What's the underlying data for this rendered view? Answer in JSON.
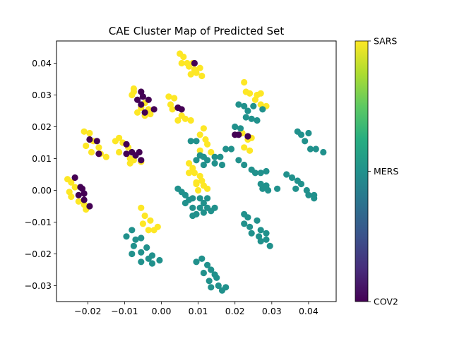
{
  "chart_data": {
    "type": "scatter",
    "title": "CAE Cluster Map of Predicted Set",
    "xlabel": "",
    "ylabel": "",
    "xlim": [
      -0.0285,
      0.0475
    ],
    "ylim": [
      -0.035,
      0.047
    ],
    "xticks": [
      -0.02,
      -0.01,
      0.0,
      0.01,
      0.02,
      0.03,
      0.04
    ],
    "xtick_labels": [
      "−0.02",
      "−0.01",
      "0.00",
      "0.01",
      "0.02",
      "0.03",
      "0.04"
    ],
    "yticks": [
      -0.03,
      -0.02,
      -0.01,
      0.0,
      0.01,
      0.02,
      0.03,
      0.04
    ],
    "ytick_labels": [
      "−0.03",
      "−0.02",
      "−0.01",
      "0.00",
      "0.01",
      "0.02",
      "0.03",
      "0.04"
    ],
    "colorbar": {
      "colormap": "viridis",
      "labels": [
        "SARS",
        "MERS",
        "COV2"
      ],
      "colors": {
        "SARS": "#fde725",
        "MERS": "#21918c",
        "COV2": "#440154"
      }
    },
    "series": [
      {
        "name": "SARS",
        "points": [
          [
            0.005,
            0.043
          ],
          [
            0.006,
            0.042
          ],
          [
            0.0055,
            0.04
          ],
          [
            0.007,
            0.04
          ],
          [
            0.0075,
            0.039
          ],
          [
            0.0085,
            0.04
          ],
          [
            0.009,
            0.038
          ],
          [
            0.008,
            0.0365
          ],
          [
            0.0095,
            0.037
          ],
          [
            0.011,
            0.036
          ],
          [
            0.0105,
            0.0385
          ],
          [
            -0.0075,
            0.032
          ],
          [
            -0.0075,
            0.031
          ],
          [
            -0.008,
            0.03
          ],
          [
            -0.0045,
            0.0275
          ],
          [
            -0.0055,
            0.026
          ],
          [
            -0.0045,
            0.0235
          ],
          [
            -0.003,
            0.024
          ],
          [
            -0.0035,
            0.0255
          ],
          [
            -0.0065,
            0.0245
          ],
          [
            0.002,
            0.0295
          ],
          [
            0.0035,
            0.029
          ],
          [
            0.0025,
            0.027
          ],
          [
            0.003,
            0.0255
          ],
          [
            0.0055,
            0.0235
          ],
          [
            0.0045,
            0.022
          ],
          [
            0.0065,
            0.0225
          ],
          [
            0.008,
            0.022
          ],
          [
            -0.021,
            0.0185
          ],
          [
            -0.0195,
            0.018
          ],
          [
            -0.0185,
            0.0155
          ],
          [
            -0.0205,
            0.014
          ],
          [
            -0.017,
            0.0135
          ],
          [
            -0.019,
            0.012
          ],
          [
            -0.0165,
            0.0115
          ],
          [
            -0.015,
            0.0105
          ],
          [
            -0.0115,
            0.0165
          ],
          [
            -0.0125,
            0.0155
          ],
          [
            -0.0105,
            0.015
          ],
          [
            -0.009,
            0.0135
          ],
          [
            -0.0115,
            0.012
          ],
          [
            -0.0085,
            0.01
          ],
          [
            -0.0075,
            0.0095
          ],
          [
            -0.0055,
            0.009
          ],
          [
            -0.0085,
            0.0085
          ],
          [
            0.0115,
            0.0195
          ],
          [
            0.0105,
            0.0175
          ],
          [
            0.012,
            0.016
          ],
          [
            0.0125,
            0.0145
          ],
          [
            0.0105,
            0.0125
          ],
          [
            0.0135,
            0.012
          ],
          [
            0.0075,
            0.0085
          ],
          [
            0.0085,
            0.007
          ],
          [
            0.009,
            0.0055
          ],
          [
            0.0075,
            0.0055
          ],
          [
            0.0105,
            0.0045
          ],
          [
            0.011,
            0.003
          ],
          [
            0.0095,
            0.002
          ],
          [
            0.0115,
            0.0015
          ],
          [
            0.0125,
            0.0005
          ],
          [
            0.01,
            0.0
          ],
          [
            0.0095,
            0.0025
          ],
          [
            -0.0255,
            0.0035
          ],
          [
            -0.0245,
            0.0025
          ],
          [
            -0.0235,
            0.001
          ],
          [
            -0.025,
            -0.0005
          ],
          [
            -0.0245,
            -0.002
          ],
          [
            -0.0225,
            -0.0035
          ],
          [
            -0.021,
            -0.0045
          ],
          [
            -0.0205,
            -0.006
          ],
          [
            -0.0055,
            -0.0055
          ],
          [
            -0.0045,
            -0.008
          ],
          [
            -0.005,
            -0.0105
          ],
          [
            -0.003,
            -0.0095
          ],
          [
            -0.0035,
            -0.0125
          ],
          [
            -0.002,
            -0.0125
          ],
          [
            -0.001,
            -0.0115
          ],
          [
            0.0225,
            0.034
          ],
          [
            0.023,
            0.031
          ],
          [
            0.024,
            0.0305
          ],
          [
            0.026,
            0.03
          ],
          [
            0.027,
            0.0305
          ],
          [
            0.0255,
            0.0285
          ],
          [
            0.027,
            0.027
          ],
          [
            0.0285,
            0.0265
          ],
          [
            0.022,
            0.018
          ],
          [
            0.0235,
            0.016
          ],
          [
            0.0245,
            0.0165
          ],
          [
            0.0225,
            0.0135
          ],
          [
            0.024,
            0.0125
          ]
        ]
      },
      {
        "name": "MERS",
        "points": [
          [
            0.021,
            0.027
          ],
          [
            0.0225,
            0.0265
          ],
          [
            0.0235,
            0.025
          ],
          [
            0.025,
            0.0265
          ],
          [
            0.0275,
            0.0255
          ],
          [
            0.023,
            0.023
          ],
          [
            0.0245,
            0.0225
          ],
          [
            0.026,
            0.022
          ],
          [
            0.02,
            0.02
          ],
          [
            0.0215,
            0.0195
          ],
          [
            0.008,
            0.0155
          ],
          [
            0.0095,
            0.0155
          ],
          [
            0.0105,
            0.011
          ],
          [
            0.0115,
            0.0105
          ],
          [
            0.0095,
            0.0095
          ],
          [
            0.0125,
            0.0095
          ],
          [
            0.0115,
            0.008
          ],
          [
            0.0145,
            0.0105
          ],
          [
            0.016,
            0.0105
          ],
          [
            0.0175,
            0.013
          ],
          [
            0.019,
            0.013
          ],
          [
            0.0145,
            0.0085
          ],
          [
            0.0165,
            0.008
          ],
          [
            0.021,
            0.0095
          ],
          [
            0.0225,
            0.008
          ],
          [
            0.0245,
            0.0065
          ],
          [
            0.027,
            0.0055
          ],
          [
            0.0285,
            0.006
          ],
          [
            0.0255,
            0.0055
          ],
          [
            0.027,
            0.002
          ],
          [
            0.0285,
            0.0015
          ],
          [
            0.0275,
            0.0005
          ],
          [
            0.029,
            0.0
          ],
          [
            0.0315,
            0.0005
          ],
          [
            0.034,
            0.005
          ],
          [
            0.0355,
            0.004
          ],
          [
            0.037,
            0.003
          ],
          [
            0.038,
            0.002
          ],
          [
            0.0365,
            0.0005
          ],
          [
            0.0395,
            0.0
          ],
          [
            0.04,
            -0.0015
          ],
          [
            0.0415,
            -0.0015
          ],
          [
            0.0415,
            -0.0025
          ],
          [
            0.037,
            0.0185
          ],
          [
            0.038,
            0.0175
          ],
          [
            0.04,
            0.018
          ],
          [
            0.039,
            0.0155
          ],
          [
            0.0405,
            0.013
          ],
          [
            0.042,
            0.013
          ],
          [
            0.044,
            0.012
          ],
          [
            0.0045,
            0.0005
          ],
          [
            0.0055,
            -0.0005
          ],
          [
            0.0065,
            -0.0015
          ],
          [
            0.0075,
            -0.003
          ],
          [
            0.0085,
            -0.0025
          ],
          [
            0.0065,
            -0.004
          ],
          [
            0.0085,
            -0.0055
          ],
          [
            0.0105,
            -0.0055
          ],
          [
            0.0125,
            -0.0055
          ],
          [
            0.0135,
            -0.0065
          ],
          [
            0.0115,
            -0.007
          ],
          [
            0.0095,
            -0.0075
          ],
          [
            0.0085,
            -0.008
          ],
          [
            0.0145,
            -0.0055
          ],
          [
            0.0125,
            -0.0025
          ],
          [
            0.0105,
            -0.0025
          ],
          [
            0.0115,
            -0.004
          ],
          [
            0.0225,
            -0.0075
          ],
          [
            0.0235,
            -0.0085
          ],
          [
            0.0225,
            -0.0105
          ],
          [
            0.024,
            -0.0115
          ],
          [
            0.026,
            -0.0095
          ],
          [
            0.027,
            -0.0125
          ],
          [
            0.0285,
            -0.0135
          ],
          [
            0.0265,
            -0.0145
          ],
          [
            0.027,
            -0.016
          ],
          [
            0.0285,
            -0.0155
          ],
          [
            0.0295,
            -0.0175
          ],
          [
            0.0245,
            -0.0135
          ],
          [
            -0.0095,
            -0.0145
          ],
          [
            -0.008,
            -0.0125
          ],
          [
            -0.007,
            -0.0155
          ],
          [
            -0.0055,
            -0.015
          ],
          [
            -0.0075,
            -0.0175
          ],
          [
            -0.008,
            -0.02
          ],
          [
            -0.0055,
            -0.0195
          ],
          [
            -0.004,
            -0.018
          ],
          [
            -0.0035,
            -0.0215
          ],
          [
            -0.0055,
            -0.0225
          ],
          [
            -0.0025,
            -0.0205
          ],
          [
            -0.0025,
            -0.023
          ],
          [
            -0.0005,
            -0.022
          ],
          [
            0.0095,
            -0.0225
          ],
          [
            0.011,
            -0.0215
          ],
          [
            0.0125,
            -0.0235
          ],
          [
            0.0115,
            -0.026
          ],
          [
            0.0135,
            -0.025
          ],
          [
            0.0145,
            -0.0265
          ],
          [
            0.013,
            -0.0285
          ],
          [
            0.015,
            -0.0275
          ],
          [
            0.0135,
            -0.0305
          ],
          [
            0.0155,
            -0.03
          ],
          [
            0.0165,
            -0.0315
          ],
          [
            0.0175,
            -0.0305
          ]
        ]
      },
      {
        "name": "COV2",
        "points": [
          [
            -0.0055,
            0.031
          ],
          [
            -0.005,
            0.0295
          ],
          [
            -0.0035,
            0.0285
          ],
          [
            -0.0065,
            0.0285
          ],
          [
            -0.0055,
            0.027
          ],
          [
            -0.002,
            0.0255
          ],
          [
            -0.0045,
            0.0245
          ],
          [
            0.0045,
            0.026
          ],
          [
            0.0055,
            0.0255
          ],
          [
            0.009,
            0.04
          ],
          [
            -0.0195,
            0.016
          ],
          [
            -0.0175,
            0.0155
          ],
          [
            -0.017,
            0.0115
          ],
          [
            -0.0095,
            0.0145
          ],
          [
            -0.0095,
            0.0115
          ],
          [
            -0.008,
            0.012
          ],
          [
            -0.006,
            0.012
          ],
          [
            -0.007,
            0.011
          ],
          [
            -0.0055,
            0.0095
          ],
          [
            -0.0235,
            0.004
          ],
          [
            -0.022,
            0.001
          ],
          [
            -0.0215,
            0.0005
          ],
          [
            -0.021,
            -0.001
          ],
          [
            -0.0225,
            -0.0015
          ],
          [
            -0.021,
            -0.003
          ],
          [
            -0.0195,
            -0.005
          ],
          [
            0.02,
            0.0175
          ],
          [
            0.021,
            0.0175
          ],
          [
            0.0235,
            0.017
          ]
        ]
      }
    ]
  }
}
